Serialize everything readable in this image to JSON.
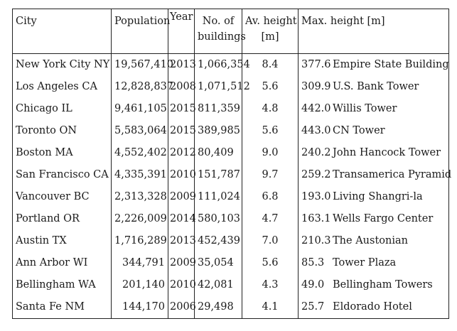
{
  "headers": {
    "city": "City",
    "population": "Population",
    "year": "Year",
    "buildings_line1": "No. of",
    "buildings_line2": "buildings",
    "avg_line1": "Av. height",
    "avg_line2": "[m]",
    "max": "Max. height [m]"
  },
  "rows": [
    {
      "city": "New York City NY",
      "population": "19,567,410",
      "year": "2013",
      "buildings": "1,066,354",
      "avg": "8.4",
      "max": "377.6",
      "tower": "Empire State Building"
    },
    {
      "city": "Los Angeles CA",
      "population": "12,828,837",
      "year": "2008",
      "buildings": "1,071,512",
      "avg": "5.6",
      "max": "309.9",
      "tower": "U.S. Bank Tower"
    },
    {
      "city": "Chicago IL",
      "population": "9,461,105",
      "year": "2015",
      "buildings": "811,359",
      "avg": "4.8",
      "max": "442.0",
      "tower": "Willis Tower"
    },
    {
      "city": "Toronto ON",
      "population": "5,583,064",
      "year": "2015",
      "buildings": "389,985",
      "avg": "5.6",
      "max": "443.0",
      "tower": "CN Tower"
    },
    {
      "city": "Boston MA",
      "population": "4,552,402",
      "year": "2012",
      "buildings": "80,409",
      "avg": "9.0",
      "max": "240.2",
      "tower": "John Hancock Tower"
    },
    {
      "city": "San Francisco CA",
      "population": "4,335,391",
      "year": "2010",
      "buildings": "151,787",
      "avg": "9.7",
      "max": "259.2",
      "tower": "Transamerica Pyramid"
    },
    {
      "city": "Vancouver BC",
      "population": "2,313,328",
      "year": "2009",
      "buildings": "111,024",
      "avg": "6.8",
      "max": "193.0",
      "tower": "Living Shangri-la"
    },
    {
      "city": "Portland OR",
      "population": "2,226,009",
      "year": "2014",
      "buildings": "580,103",
      "avg": "4.7",
      "max": "163.1",
      "tower": "Wells Fargo Center"
    },
    {
      "city": "Austin TX",
      "population": "1,716,289",
      "year": "2013",
      "buildings": "452,439",
      "avg": "7.0",
      "max": "210.3",
      "tower": "The Austonian"
    },
    {
      "city": "Ann Arbor WI",
      "population": "344,791",
      "year": "2009",
      "buildings": "35,054",
      "avg": "5.6",
      "max": "85.3",
      "tower": "Tower Plaza"
    },
    {
      "city": "Bellingham WA",
      "population": "201,140",
      "year": "2010",
      "buildings": "42,081",
      "avg": "4.3",
      "max": "49.0",
      "tower": "Bellingham Towers"
    },
    {
      "city": "Santa Fe NM",
      "population": "144,170",
      "year": "2006",
      "buildings": "29,498",
      "avg": "4.1",
      "max": "25.7",
      "tower": "Eldorado Hotel"
    }
  ]
}
